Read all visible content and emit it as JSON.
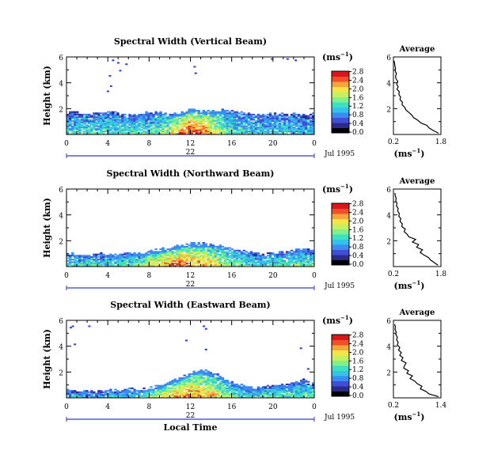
{
  "colors": {
    "colorbar": [
      "#000000",
      "#2b2b8c",
      "#3f4fd6",
      "#3a8cf0",
      "#34c2ea",
      "#3ee0c4",
      "#7ff08a",
      "#c6f060",
      "#f4e64a",
      "#f7a43a",
      "#ee5028",
      "#d81818"
    ],
    "data_blue": "#2c3fd0",
    "data_red": "#e02a1c",
    "data_cyan": "#49d6e6"
  },
  "chart_data": [
    {
      "type": "heatmap",
      "title": "Spectral Width (Vertical Beam)",
      "ylabel": "Height (km)",
      "xlabel": "",
      "x_ticks": [
        "0",
        "4",
        "8",
        "12",
        "16",
        "20",
        "0"
      ],
      "xlim": [
        0,
        24
      ],
      "ylim": [
        0,
        6
      ],
      "y_ticks": [
        "2",
        "4",
        "6"
      ],
      "date_center": "22",
      "date_right": "Jul 1995",
      "colorbar": {
        "unit": "(ms",
        "unit_sup": "−1",
        "unit_close": ")",
        "ticks": [
          "0.0",
          "0.4",
          "0.8",
          "1.2",
          "1.6",
          "2.0",
          "2.4",
          "2.8"
        ]
      },
      "layer_top_km": [
        1.7,
        1.7,
        1.6,
        1.7,
        1.8,
        1.6,
        1.5,
        1.6,
        1.7,
        1.8,
        1.6,
        1.7,
        2.0,
        1.8,
        1.9,
        1.9,
        1.8,
        1.7,
        1.6,
        1.6,
        1.6,
        1.6,
        1.7,
        1.5,
        1.6
      ],
      "layer_peak": [
        0.9,
        0.9,
        1.0,
        1.0,
        1.0,
        1.1,
        1.1,
        1.1,
        1.0,
        1.2,
        1.6,
        2.4,
        2.6,
        2.4,
        1.9,
        1.4,
        1.0,
        0.9,
        0.8,
        0.8,
        0.9,
        0.9,
        0.8,
        0.7,
        0.8
      ],
      "sparse_points": [
        [
          4.4,
          5.8
        ],
        [
          4.9,
          5.6
        ],
        [
          5.1,
          5.0
        ],
        [
          4.1,
          4.6
        ],
        [
          4.2,
          3.8
        ],
        [
          3.9,
          3.4
        ],
        [
          5.7,
          5.5
        ],
        [
          12.3,
          5.3
        ],
        [
          12.4,
          4.8
        ],
        [
          21.3,
          5.9
        ],
        [
          19.8,
          5.9
        ],
        [
          22.1,
          5.8
        ]
      ],
      "average_profile": {
        "title": "Average",
        "xlabel": "(ms",
        "xlabel_sup": "−1",
        "xlabel_close": ")",
        "x_ticks": [
          "0.2",
          "1.8"
        ],
        "xlim": [
          0.2,
          1.8
        ],
        "y_ticks": [
          "2",
          "4",
          "6"
        ],
        "ylim": [
          0,
          6
        ],
        "heights_km": [
          0.1,
          0.3,
          0.5,
          0.7,
          0.9,
          1.1,
          1.3,
          1.5,
          1.7,
          1.9,
          2.1,
          2.3,
          2.5,
          2.7,
          2.9,
          3.1,
          3.3,
          3.5,
          3.7,
          3.9,
          4.1,
          4.3,
          4.5,
          4.7,
          4.9,
          5.1,
          5.3,
          5.5,
          5.7
        ],
        "values": [
          1.72,
          1.55,
          1.4,
          1.33,
          1.12,
          1.02,
          0.88,
          0.82,
          0.72,
          0.62,
          0.58,
          0.49,
          0.5,
          0.42,
          0.44,
          0.38,
          0.4,
          0.32,
          0.36,
          0.31,
          0.35,
          0.29,
          0.27,
          0.3,
          0.26,
          0.27,
          0.25,
          0.24,
          0.22
        ]
      }
    },
    {
      "type": "heatmap",
      "title": "Spectral Width (Northward Beam)",
      "ylabel": "Height (km)",
      "xlabel": "",
      "x_ticks": [
        "0",
        "4",
        "8",
        "12",
        "16",
        "20",
        "0"
      ],
      "xlim": [
        0,
        24
      ],
      "ylim": [
        0,
        6
      ],
      "y_ticks": [
        "2",
        "4",
        "6"
      ],
      "date_center": "22",
      "date_right": "Jul 1995",
      "colorbar": {
        "unit": "(ms",
        "unit_sup": "−1",
        "unit_close": ")",
        "ticks": [
          "0.0",
          "0.4",
          "0.8",
          "1.2",
          "1.6",
          "2.0",
          "2.4",
          "2.8"
        ]
      },
      "layer_top_km": [
        1.0,
        1.0,
        0.9,
        1.0,
        0.9,
        1.0,
        1.1,
        1.0,
        1.2,
        1.3,
        1.5,
        1.7,
        1.8,
        1.8,
        1.7,
        1.6,
        1.4,
        1.2,
        1.1,
        1.0,
        1.1,
        1.2,
        1.3,
        1.4,
        1.2
      ],
      "layer_peak": [
        0.9,
        1.0,
        1.1,
        1.0,
        0.9,
        1.0,
        1.1,
        1.3,
        1.8,
        2.0,
        2.2,
        2.4,
        2.2,
        2.0,
        1.8,
        1.6,
        1.3,
        1.1,
        1.0,
        1.0,
        1.1,
        1.2,
        1.3,
        1.2,
        1.0
      ],
      "sparse_points": [],
      "average_profile": {
        "title": "Average",
        "xlabel": "(ms",
        "xlabel_sup": "−1",
        "xlabel_close": ")",
        "x_ticks": [
          "0.2",
          "1.8"
        ],
        "xlim": [
          0.2,
          1.8
        ],
        "y_ticks": [
          "2",
          "4",
          "6"
        ],
        "ylim": [
          0,
          6
        ],
        "heights_km": [
          0.1,
          0.3,
          0.5,
          0.7,
          0.9,
          1.1,
          1.3,
          1.5,
          1.7,
          1.9,
          2.1,
          2.3,
          2.5,
          2.7,
          2.9,
          3.1,
          3.3,
          3.5,
          3.7,
          3.9,
          4.1,
          4.3,
          4.5,
          4.7,
          4.9,
          5.1,
          5.3,
          5.5,
          5.7
        ],
        "values": [
          1.7,
          1.58,
          1.45,
          1.38,
          1.22,
          1.1,
          1.18,
          0.98,
          1.05,
          0.84,
          0.95,
          0.72,
          0.66,
          0.56,
          0.6,
          0.48,
          0.5,
          0.42,
          0.45,
          0.38,
          0.4,
          0.34,
          0.36,
          0.3,
          0.32,
          0.28,
          0.29,
          0.26,
          0.25
        ]
      }
    },
    {
      "type": "heatmap",
      "title": "Spectral Width (Eastward Beam)",
      "ylabel": "Height (km)",
      "xlabel": "Local Time",
      "x_ticks": [
        "0",
        "4",
        "8",
        "12",
        "16",
        "20",
        "0"
      ],
      "xlim": [
        0,
        24
      ],
      "ylim": [
        0,
        6
      ],
      "y_ticks": [
        "2",
        "4",
        "6"
      ],
      "date_center": "22",
      "date_right": "Jul 1995",
      "colorbar": {
        "unit": "(ms",
        "unit_sup": "−1",
        "unit_close": ")",
        "ticks": [
          "0.0",
          "0.4",
          "0.8",
          "1.2",
          "1.6",
          "2.0",
          "2.4",
          "2.8"
        ]
      },
      "layer_top_km": [
        0.6,
        0.5,
        0.6,
        0.5,
        0.6,
        0.6,
        0.7,
        0.6,
        0.8,
        1.0,
        1.3,
        1.6,
        2.0,
        2.2,
        1.9,
        1.6,
        1.2,
        0.9,
        0.8,
        0.9,
        1.0,
        1.0,
        1.2,
        1.4,
        1.1
      ],
      "layer_peak": [
        0.8,
        0.8,
        0.7,
        0.8,
        0.8,
        0.9,
        0.9,
        1.0,
        1.3,
        1.6,
        1.9,
        2.2,
        2.2,
        2.0,
        1.9,
        1.5,
        1.2,
        1.0,
        1.0,
        1.0,
        1.1,
        1.1,
        1.2,
        1.1,
        0.9
      ],
      "sparse_points": [
        [
          0.3,
          5.5
        ],
        [
          0.5,
          5.6
        ],
        [
          2.1,
          5.6
        ],
        [
          0.7,
          4.2
        ],
        [
          13.2,
          5.6
        ],
        [
          13.4,
          5.4
        ],
        [
          22.6,
          3.9
        ],
        [
          13.4,
          3.8
        ],
        [
          11.5,
          4.5
        ],
        [
          23.3,
          2.3
        ]
      ],
      "average_profile": {
        "title": "Average",
        "xlabel": "(ms",
        "xlabel_sup": "−1",
        "xlabel_close": ")",
        "x_ticks": [
          "0.2",
          "1.4"
        ],
        "xlim": [
          0.2,
          1.4
        ],
        "y_ticks": [
          "2",
          "4",
          "6"
        ],
        "ylim": [
          0,
          6
        ],
        "heights_km": [
          0.1,
          0.3,
          0.5,
          0.7,
          0.9,
          1.1,
          1.3,
          1.5,
          1.7,
          1.9,
          2.1,
          2.3,
          2.5,
          2.7,
          2.9,
          3.1,
          3.3,
          3.5,
          3.7,
          3.9,
          4.1,
          4.3,
          4.5,
          4.7,
          4.9,
          5.1,
          5.3,
          5.5,
          5.7
        ],
        "values": [
          1.34,
          1.1,
          1.02,
          0.88,
          0.92,
          0.8,
          0.74,
          0.62,
          0.68,
          0.54,
          0.58,
          0.46,
          0.48,
          0.52,
          0.4,
          0.44,
          0.36,
          0.4,
          0.33,
          0.36,
          0.3,
          0.32,
          0.28,
          0.3,
          0.26,
          0.27,
          0.24,
          0.25,
          0.23
        ]
      }
    }
  ]
}
